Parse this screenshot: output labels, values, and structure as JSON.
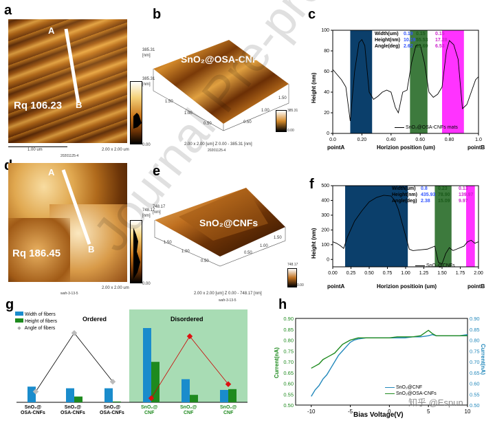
{
  "panels": {
    "a": {
      "label": "a",
      "rq": "Rq 106.23",
      "pointA": "A",
      "pointB": "B",
      "scalebar": "1.00 um",
      "size": "2.00 x 2.00 um",
      "date": "20201125-4",
      "cbar_max": "385.31",
      "cbar_unit": "[nm]",
      "cbar_min": "0.00"
    },
    "b": {
      "label": "b",
      "title": "SnO₂@OSA-CNFs",
      "z_max": "385.31",
      "z_unit": "[nm]",
      "ticks_left": [
        "1.50",
        "1.00",
        "0.50"
      ],
      "ticks_right": [
        "1.50",
        "1.00",
        "0.50"
      ],
      "caption": "2.00 x 2.00 [um]   Z  0.00 - 385.31 [nm]",
      "date": "20201125-4",
      "cbar_max": "385.31",
      "cbar_min": "0.00"
    },
    "c": {
      "label": "c",
      "ylabel": "Height (nm)",
      "xlabel": "Horizion position (um)",
      "pointA": "pointA",
      "pointB": "pointB",
      "legend": "SnO₂@OSA-CNFs mats",
      "table": {
        "rows": [
          {
            "name": "Width(um)",
            "v": [
              "0.19",
              "0.15",
              "0.15"
            ]
          },
          {
            "name": "Height(nm)",
            "v": [
              "10.19",
              "55.53",
              "17.28"
            ]
          },
          {
            "name": "Angle(deg)",
            "v": [
              "2.62",
              "20.69",
              "6.53"
            ]
          }
        ]
      }
    },
    "d": {
      "label": "d",
      "rq": "Rq 186.45",
      "pointA": "A",
      "pointB": "B",
      "size": "2.00 x 2.00 um",
      "date": "wafr-3-13-5",
      "cbar_max": "748.17",
      "cbar_unit": "[nm]",
      "cbar_min": "0.00"
    },
    "e": {
      "label": "e",
      "title": "SnO₂@CNFs",
      "z_max": "748.17",
      "z_unit": "[nm]",
      "ticks_left": [
        "1.50",
        "1.00",
        "0.50"
      ],
      "ticks_right": [
        "0.50",
        "1.00",
        "1.50"
      ],
      "caption": "2.00 x 2.00 [um]   Z  0.00 - 748.17 [nm]",
      "date": "wafr-3-13-5",
      "cbar_max": "748.17",
      "cbar_min": "0.00"
    },
    "f": {
      "label": "f",
      "ylabel": "Height (nm)",
      "xlabel": "Horizion positioin (um)",
      "pointA": "pointA",
      "pointB": "pointB",
      "legend": "SnO₂@CNFs",
      "table": {
        "rows": [
          {
            "name": "Width(um)",
            "v": [
              "0.8",
              "0.23",
              "0.13"
            ]
          },
          {
            "name": "Height(nm)",
            "v": [
              "435.93",
              "78.90",
              "139.97"
            ]
          },
          {
            "name": "Angle(deg)",
            "v": [
              "2.38",
              "15.09",
              "9.97"
            ]
          }
        ]
      }
    },
    "g": {
      "label": "g",
      "ordered": "Ordered",
      "disordered": "Disordered",
      "legend": [
        "Width of fibers",
        "Height of fibers",
        "Angle of fibers"
      ],
      "xlabels": [
        [
          "SnO₂@",
          "OSA-CNFs"
        ],
        [
          "SnO₂@",
          "OSA-CNFs"
        ],
        [
          "SnO₂@",
          "OSA-CNFs"
        ],
        [
          "SnO₂@",
          "CNF"
        ],
        [
          "SnO₂@",
          "CNF"
        ],
        [
          "SnO₂@",
          "CNF"
        ]
      ]
    },
    "h": {
      "label": "h",
      "ylabel_left": "Current(nA)",
      "ylabel_right": "Current(nA)",
      "xlabel": "Bias Voltage(V)",
      "legend": [
        "SnO₂@CNF",
        "SnO₂@OSA-CNFs"
      ]
    }
  },
  "watermark": "Journal Pre-proof",
  "logo": "知乎 @Espun",
  "chart_data": [
    {
      "type": "line",
      "panel": "c",
      "ylabel": "Height (nm)",
      "xlabel": "Horizion position (um)",
      "xlim": [
        0,
        1.0
      ],
      "ylim": [
        0,
        100
      ],
      "x": [
        0.0,
        0.03,
        0.06,
        0.09,
        0.12,
        0.15,
        0.18,
        0.2,
        0.22,
        0.25,
        0.28,
        0.31,
        0.34,
        0.37,
        0.4,
        0.43,
        0.45,
        0.48,
        0.51,
        0.54,
        0.57,
        0.6,
        0.63,
        0.66,
        0.69,
        0.72,
        0.75,
        0.78,
        0.8,
        0.83,
        0.86,
        0.89,
        0.92,
        0.95,
        0.98,
        1.0
      ],
      "series": [
        {
          "name": "SnO₂@OSA-CNFs mats",
          "values": [
            62,
            57,
            52,
            45,
            12,
            60,
            88,
            91,
            85,
            40,
            33,
            36,
            40,
            42,
            40,
            25,
            20,
            40,
            42,
            68,
            85,
            86,
            68,
            40,
            35,
            38,
            45,
            80,
            90,
            86,
            72,
            24,
            28,
            40,
            52,
            55
          ]
        }
      ],
      "bands": [
        {
          "x0": 0.12,
          "x1": 0.27,
          "color": "#0b3f6b"
        },
        {
          "x0": 0.53,
          "x1": 0.65,
          "color": "#3d7a3d"
        },
        {
          "x0": 0.75,
          "x1": 0.9,
          "color": "#ff33ff"
        }
      ],
      "xticks": [
        0.0,
        0.2,
        0.4,
        0.6,
        0.8,
        1.0
      ],
      "yticks": [
        0,
        20,
        40,
        60,
        80,
        100
      ]
    },
    {
      "type": "line",
      "panel": "f",
      "ylabel": "Height (nm)",
      "xlabel": "Horizion positioin (um)",
      "xlim": [
        0,
        2.0
      ],
      "ylim": [
        -50,
        500
      ],
      "x": [
        0.0,
        0.05,
        0.1,
        0.15,
        0.2,
        0.3,
        0.4,
        0.5,
        0.6,
        0.7,
        0.8,
        0.85,
        0.9,
        1.0,
        1.05,
        1.1,
        1.2,
        1.3,
        1.4,
        1.45,
        1.5,
        1.55,
        1.6,
        1.65,
        1.7,
        1.8,
        1.85,
        1.9,
        1.95,
        2.0
      ],
      "series": [
        {
          "name": "SnO₂@CNFs",
          "values": [
            120,
            110,
            95,
            75,
            150,
            260,
            330,
            390,
            420,
            435,
            430,
            400,
            340,
            160,
            70,
            60,
            65,
            70,
            90,
            -20,
            -30,
            40,
            80,
            60,
            70,
            90,
            120,
            130,
            110,
            120
          ]
        }
      ],
      "bands": [
        {
          "x0": 0.17,
          "x1": 1.03,
          "color": "#0b3f6b"
        },
        {
          "x0": 1.4,
          "x1": 1.63,
          "color": "#3d7a3d"
        },
        {
          "x0": 1.83,
          "x1": 1.95,
          "color": "#ff33ff"
        }
      ],
      "xticks": [
        0.0,
        0.25,
        0.5,
        0.75,
        1.0,
        1.25,
        1.5,
        1.75,
        2.0
      ],
      "yticks": [
        0,
        100,
        200,
        300,
        400,
        500
      ]
    },
    {
      "type": "bar",
      "panel": "g",
      "categories": [
        "SnO₂@OSA-CNFs",
        "SnO₂@OSA-CNFs",
        "SnO₂@OSA-CNFs",
        "SnO₂@CNF",
        "SnO₂@CNF",
        "SnO₂@CNF"
      ],
      "series": [
        {
          "name": "Width of fibers",
          "values": [
            0.19,
            0.17,
            0.17,
            0.9,
            0.28,
            0.15
          ]
        },
        {
          "name": "Height of fibers",
          "values": [
            0,
            0.07,
            0.01,
            0.49,
            0.09,
            0.16
          ]
        },
        {
          "name": "Angle of fibers",
          "values": [
            0.13,
            0.84,
            0.25,
            0.05,
            0.8,
            0.22
          ]
        }
      ],
      "ylim": [
        0,
        1.0
      ]
    },
    {
      "type": "line",
      "panel": "h",
      "xlabel": "Bias Voltage(V)",
      "ylabel": "Current(nA)",
      "xlim": [
        -12,
        10
      ],
      "ylim": [
        0.5,
        0.9
      ],
      "xticks": [
        -10,
        -5,
        0,
        5,
        10
      ],
      "yticks": [
        0.5,
        0.55,
        0.6,
        0.65,
        0.7,
        0.75,
        0.8,
        0.85,
        0.9
      ],
      "x": [
        -10,
        -9.5,
        -9,
        -8.5,
        -8,
        -7.5,
        -7,
        -6.5,
        -6,
        -5.5,
        -5,
        -4.5,
        -4,
        -3,
        -2,
        -1,
        0,
        1,
        2,
        3,
        4,
        5,
        5.5,
        6,
        7,
        8,
        9,
        10
      ],
      "series": [
        {
          "name": "SnO₂@CNF",
          "values": [
            0.54,
            0.57,
            0.59,
            0.62,
            0.64,
            0.67,
            0.7,
            0.73,
            0.75,
            0.77,
            0.79,
            0.8,
            0.805,
            0.81,
            0.81,
            0.81,
            0.81,
            0.81,
            0.81,
            0.815,
            0.815,
            0.82,
            0.825,
            0.82,
            0.82,
            0.82,
            0.82,
            0.825
          ]
        },
        {
          "name": "SnO₂@OSA-CNFs",
          "values": [
            0.67,
            0.68,
            0.69,
            0.71,
            0.72,
            0.73,
            0.74,
            0.76,
            0.78,
            0.79,
            0.8,
            0.805,
            0.81,
            0.81,
            0.81,
            0.81,
            0.81,
            0.815,
            0.815,
            0.815,
            0.82,
            0.845,
            0.83,
            0.82,
            0.82,
            0.82,
            0.82,
            0.82
          ]
        }
      ]
    }
  ]
}
